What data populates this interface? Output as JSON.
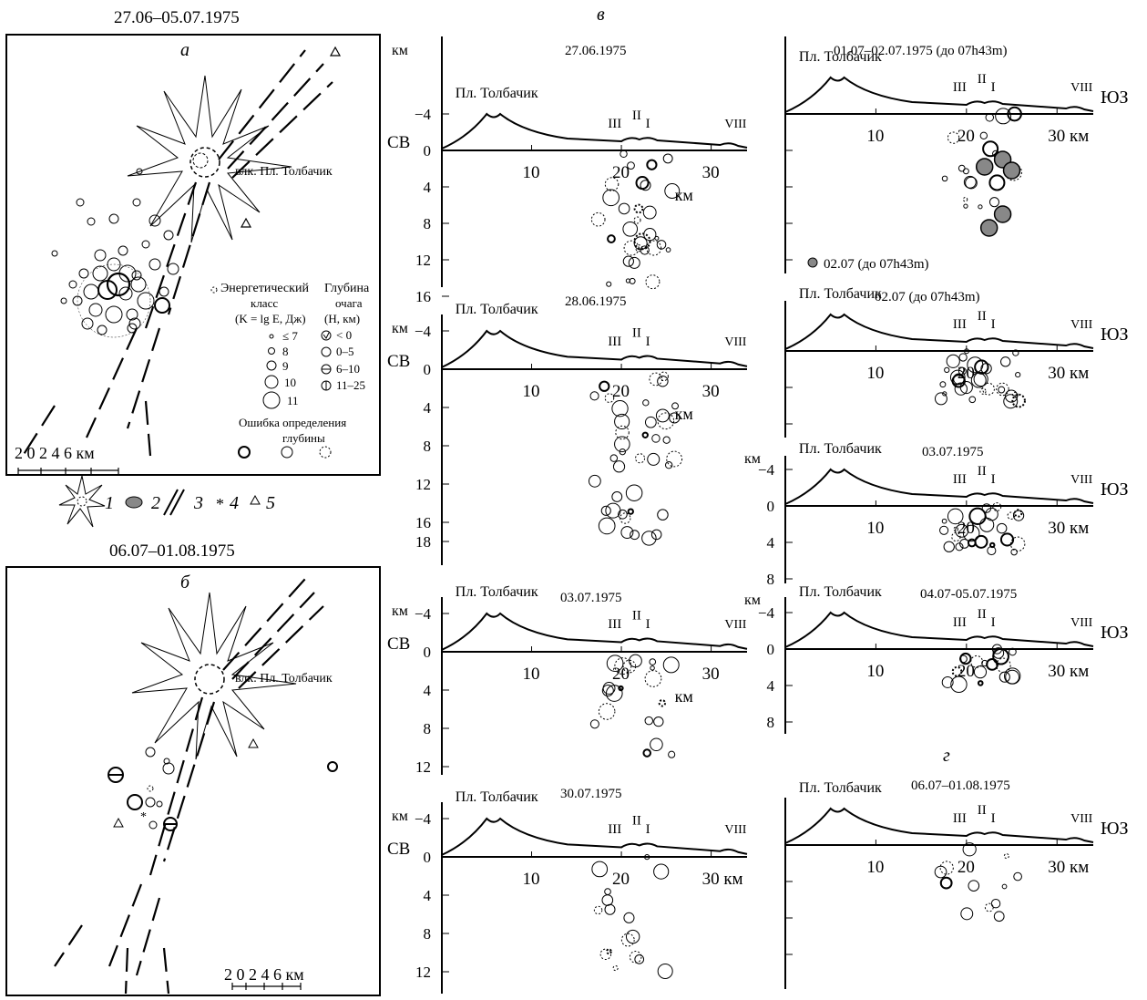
{
  "panels": {
    "a": {
      "letter": "а",
      "period": "27.06–05.07.1975",
      "volcano_label": "влк. Пл. Толбачик",
      "scale": "2 0 2 4 6 км"
    },
    "b": {
      "letter": "б",
      "period": "06.07–01.08.1975",
      "volcano_label": "влк. Пл. Толбачик",
      "scale": "2 0 2 4 6 км"
    },
    "v_letter": "в",
    "g_letter": "г"
  },
  "legend_a": {
    "class_title_1": "Энергетический",
    "class_title_2": "класс",
    "class_title_3": "(K = lg E, Дж)",
    "classes": [
      "≤ 7",
      "8",
      "9",
      "10",
      "11"
    ],
    "depth_title_1": "Глубина",
    "depth_title_2": "очага",
    "depth_title_3": "(H, км)",
    "depths": [
      "< 0",
      "0–5",
      "6–10",
      "11–25"
    ],
    "error_title_1": "Ошибка определения",
    "error_title_2": "глубины"
  },
  "bottom_legend": {
    "n1": "1",
    "n2": "2",
    "n3": "3",
    "n4": "4",
    "n5": "5"
  },
  "sections": [
    {
      "id": "s1",
      "date": "27.06.1975",
      "left": "СВ",
      "right": "",
      "ticks": [
        "−4",
        "0",
        "4",
        "8",
        "12",
        "16"
      ]
    },
    {
      "id": "s2",
      "date": "28.06.1975",
      "left": "СВ",
      "right": "",
      "ticks": [
        "−4",
        "0",
        "4",
        "8",
        "12",
        "16",
        "18"
      ]
    },
    {
      "id": "s3",
      "date": "03.07.1975",
      "left": "СВ",
      "right": "",
      "ticks": [
        "−4",
        "0",
        "4",
        "8",
        "12"
      ]
    },
    {
      "id": "s4",
      "date": "30.07.1975",
      "left": "СВ",
      "right": "",
      "ticks": [
        "−4",
        "0",
        "4",
        "8",
        "12"
      ]
    },
    {
      "id": "s5",
      "date": "01.07–02.07.1975 (до 07h43m)",
      "left": "",
      "right": "ЮЗ",
      "ticks": []
    },
    {
      "id": "s6",
      "date": "02.07 (до 07h43m)",
      "left": "",
      "right": "ЮЗ",
      "ticks": []
    },
    {
      "id": "s7",
      "date": "03.07.1975",
      "left": "",
      "right": "ЮЗ",
      "ticks": [
        "−4",
        "0",
        "4",
        "8"
      ]
    },
    {
      "id": "s8",
      "date": "04.07-05.07.1975",
      "left": "",
      "right": "ЮЗ",
      "ticks": [
        "−4",
        "0",
        "4",
        "8"
      ]
    },
    {
      "id": "s9",
      "date": "06.07–01.08.1975",
      "left": "",
      "right": "ЮЗ",
      "ticks": []
    }
  ],
  "common": {
    "km": "км",
    "x10": "10",
    "x20": "20",
    "x30": "30",
    "x30km": "30 км",
    "peak": "Пл. Толбачик",
    "vents_III": "III",
    "vents_II": "II",
    "vents_I": "I",
    "vent_VIII": "VIII",
    "inset_note": "02.07 (до 07h43m)"
  }
}
